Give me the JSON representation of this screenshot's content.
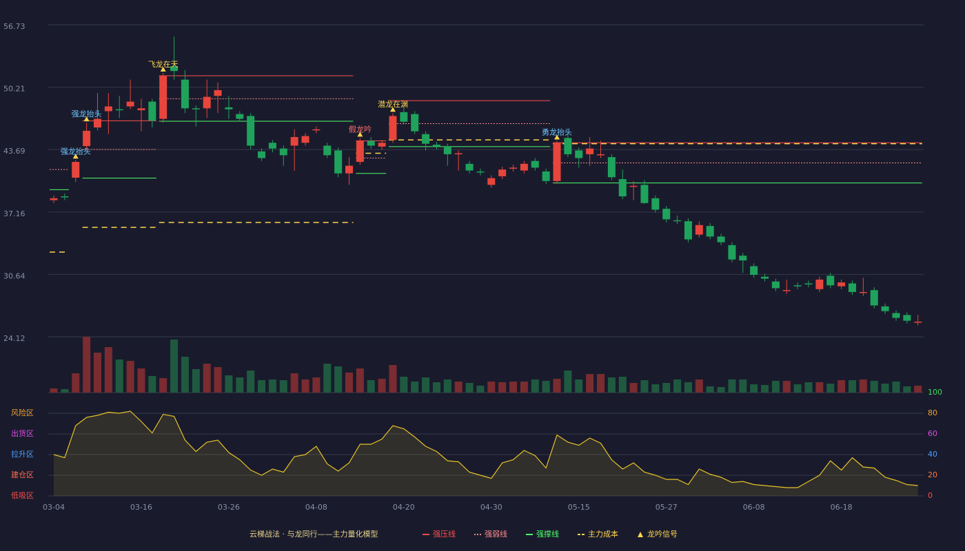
{
  "chart_data": {
    "type": "candlestick",
    "categories": [
      "03-04",
      null,
      null,
      null,
      null,
      null,
      null,
      null,
      "03-16",
      null,
      null,
      null,
      null,
      null,
      null,
      null,
      "03-26",
      null,
      null,
      null,
      null,
      null,
      null,
      null,
      "04-08",
      null,
      null,
      null,
      null,
      null,
      null,
      null,
      "04-20",
      null,
      null,
      null,
      null,
      null,
      null,
      null,
      "04-30",
      null,
      null,
      null,
      null,
      null,
      null,
      null,
      "05-15",
      null,
      null,
      null,
      null,
      null,
      null,
      null,
      "05-27",
      null,
      null,
      null,
      null,
      null,
      null,
      null,
      "06-08",
      null,
      null,
      null,
      null,
      null,
      null,
      null,
      "06-18",
      null,
      null,
      null,
      null,
      null,
      null,
      null
    ],
    "open": [
      38.4,
      38.8,
      40.75,
      44.05,
      46.0,
      47.7,
      47.9,
      48.2,
      47.8,
      48.7,
      46.9,
      52.4,
      51.0,
      48.0,
      48.0,
      49.3,
      48.1,
      47.4,
      47.2,
      43.5,
      44.4,
      43.8,
      44.1,
      44.4,
      45.7,
      44.1,
      43.6,
      41.2,
      42.4,
      44.6,
      44.0,
      44.7,
      47.6,
      47.4,
      45.3,
      44.2,
      44.0,
      43.2,
      42.2,
      41.4,
      40.0,
      40.9,
      41.7,
      41.5,
      42.5,
      41.4,
      40.4,
      44.9,
      43.6,
      43.2,
      43.1,
      42.9,
      40.6,
      39.8,
      40.0,
      38.6,
      37.5,
      36.3,
      36.2,
      34.8,
      35.7,
      34.6,
      33.7,
      32.6,
      31.5,
      30.4,
      29.9,
      28.9,
      29.5,
      29.7,
      29.1,
      30.5,
      29.4,
      29.7,
      28.7,
      29.0,
      27.3,
      26.6,
      26.4,
      25.6
    ],
    "high": [
      38.9,
      39.1,
      42.6,
      46.5,
      49.6,
      49.6,
      49.3,
      51.0,
      49.0,
      49.0,
      51.7,
      55.5,
      52.0,
      48.3,
      51.0,
      50.7,
      49.3,
      47.7,
      47.5,
      43.8,
      44.7,
      44.1,
      45.8,
      45.4,
      46.1,
      44.4,
      43.9,
      42.9,
      44.9,
      45.0,
      44.7,
      47.5,
      48.2,
      47.7,
      45.6,
      44.5,
      44.3,
      43.6,
      42.5,
      41.7,
      41.0,
      41.9,
      42.1,
      42.5,
      42.8,
      41.7,
      44.6,
      45.4,
      43.9,
      45.0,
      44.6,
      43.2,
      41.6,
      40.4,
      40.5,
      38.9,
      37.8,
      36.8,
      36.5,
      36.2,
      36.0,
      34.9,
      34.0,
      32.9,
      31.8,
      30.7,
      30.2,
      30.1,
      29.8,
      30.0,
      30.4,
      30.8,
      30.1,
      30.0,
      30.3,
      29.3,
      27.6,
      26.9,
      26.7,
      26.4
    ],
    "low": [
      38.1,
      38.4,
      40.3,
      43.75,
      45.7,
      45.3,
      47.0,
      47.9,
      45.6,
      46.0,
      46.5,
      51.0,
      47.5,
      46.1,
      47.0,
      47.5,
      46.9,
      46.6,
      43.7,
      42.5,
      43.4,
      42.0,
      41.5,
      44.1,
      45.4,
      42.8,
      40.8,
      40.0,
      42.1,
      43.8,
      43.7,
      44.4,
      46.3,
      45.3,
      43.6,
      43.7,
      42.0,
      41.5,
      41.2,
      41.0,
      39.7,
      40.6,
      41.4,
      41.2,
      41.5,
      40.1,
      40.1,
      42.9,
      41.8,
      42.0,
      42.8,
      40.5,
      38.5,
      38.4,
      38.0,
      37.1,
      36.1,
      35.9,
      34.0,
      34.5,
      34.3,
      33.7,
      31.9,
      30.8,
      30.3,
      29.9,
      28.9,
      28.6,
      29.1,
      29.3,
      28.8,
      29.2,
      29.1,
      28.5,
      28.4,
      27.1,
      26.5,
      25.8,
      25.5,
      25.3
    ],
    "close": [
      38.6,
      38.7,
      42.4,
      45.65,
      46.9,
      48.2,
      47.8,
      48.7,
      48.0,
      46.7,
      51.4,
      51.9,
      48.0,
      47.9,
      49.2,
      49.9,
      47.9,
      46.9,
      44.1,
      42.8,
      43.8,
      43.1,
      45.0,
      45.1,
      45.8,
      43.1,
      41.2,
      42.0,
      44.6,
      44.1,
      44.4,
      47.2,
      46.6,
      45.6,
      44.3,
      44.0,
      43.2,
      43.3,
      41.5,
      41.3,
      40.7,
      41.6,
      41.8,
      42.2,
      41.8,
      40.4,
      44.4,
      43.2,
      42.8,
      43.8,
      43.2,
      40.8,
      38.8,
      39.9,
      38.1,
      37.4,
      36.4,
      36.2,
      34.3,
      35.8,
      34.6,
      34.0,
      32.2,
      32.1,
      30.6,
      30.2,
      29.2,
      29.0,
      29.4,
      29.6,
      30.1,
      29.5,
      29.8,
      28.8,
      28.8,
      27.4,
      26.8,
      26.1,
      25.8,
      25.7
    ],
    "volume": [
      6,
      5,
      28,
      81,
      58,
      66,
      48,
      46,
      35,
      24,
      21,
      77,
      52,
      34,
      42,
      37,
      25,
      22,
      32,
      18,
      19,
      18,
      28,
      19,
      22,
      42,
      38,
      29,
      35,
      18,
      20,
      40,
      23,
      16,
      22,
      15,
      19,
      16,
      14,
      10,
      16,
      15,
      16,
      16,
      19,
      17,
      20,
      32,
      19,
      27,
      27,
      22,
      23,
      14,
      18,
      12,
      14,
      19,
      15,
      19,
      9,
      8,
      19,
      19,
      12,
      11,
      17,
      17,
      12,
      15,
      15,
      13,
      18,
      18,
      19,
      17,
      13,
      16,
      9,
      10
    ],
    "up_color": "#e8453c",
    "down_color": "#1fa35c",
    "volume_up_color": "#7a2c30",
    "volume_down_color": "#1f5a40",
    "ylim": [
      24.12,
      56.73
    ],
    "yticks": [
      24.12,
      30.64,
      37.16,
      43.69,
      50.21,
      56.73
    ],
    "grid": true,
    "levels": [
      {
        "start": 0,
        "end": 1,
        "weak": 41.6,
        "support": 39.5,
        "cost": 32.97
      },
      {
        "start": 3,
        "end": 9,
        "resistance": 46.7,
        "weak": 43.7,
        "support": 40.7,
        "cost": 35.56
      },
      {
        "start": 10,
        "end": 27,
        "resistance": 51.4,
        "weak": 49.0,
        "support": 46.65,
        "cost": 36.07
      },
      {
        "start": 28,
        "end": 30,
        "resistance": 44.6,
        "weak": 42.8,
        "support": 41.2,
        "cost": 43.3
      },
      {
        "start": 31,
        "end": 45,
        "resistance": 48.8,
        "weak": 46.4,
        "support": 44.0,
        "cost": 44.7
      },
      {
        "start": 46,
        "end": 79,
        "resistance": 44.4,
        "weak": 42.3,
        "support": 40.2,
        "cost": 44.3
      }
    ],
    "signals": [
      {
        "index": 2,
        "label": "强龙抬头",
        "color": "#6ec6ff"
      },
      {
        "index": 3,
        "label": "强龙抬头",
        "color": "#6ec6ff"
      },
      {
        "index": 10,
        "label": "飞龙在天",
        "color": "#ffd54f"
      },
      {
        "index": 28,
        "label": "假龙吟",
        "color": "#ff7070"
      },
      {
        "index": 31,
        "label": "潜龙在渊",
        "color": "#ffd54f"
      },
      {
        "index": 46,
        "label": "勇龙抬头",
        "color": "#6ec6ff"
      }
    ],
    "indicator": {
      "color": "#e6c229",
      "values": [
        40,
        37,
        68,
        76,
        78,
        81,
        80,
        82,
        72,
        61,
        79,
        77,
        54,
        43,
        52,
        54,
        42,
        35,
        25,
        20,
        26,
        23,
        38,
        40,
        48,
        31,
        24,
        32,
        50,
        50,
        55,
        68,
        65,
        57,
        48,
        43,
        34,
        33,
        23,
        20,
        17,
        32,
        35,
        44,
        39,
        27,
        59,
        52,
        49,
        56,
        51,
        35,
        26,
        32,
        23,
        20,
        16,
        16,
        11,
        26,
        21,
        18,
        13,
        14,
        11,
        10,
        9,
        8,
        8,
        14,
        20,
        34,
        25,
        37,
        28,
        27,
        18,
        15,
        11,
        10
      ]
    },
    "y2lim": [
      0,
      100
    ],
    "y2ticks": [
      0,
      20,
      40,
      60,
      80,
      100
    ],
    "y2tick_colors": [
      "#ff4d4d",
      "#ff7a3d",
      "#4d9fff",
      "#d94ce0",
      "#f0a030",
      "#3ddc5a"
    ],
    "zones": [
      {
        "label": "风险区",
        "value": 80,
        "color": "#f0a030"
      },
      {
        "label": "出货区",
        "value": 60,
        "color": "#d94ce0"
      },
      {
        "label": "拉升区",
        "value": 40,
        "color": "#4d9fff"
      },
      {
        "label": "建仓区",
        "value": 20,
        "color": "#ff6a4d"
      },
      {
        "label": "低吸区",
        "value": 0,
        "color": "#ff4d4d"
      }
    ],
    "legend_title": "云梯战法 · 与龙同行——主力量化模型",
    "legend": [
      {
        "label": "强压线",
        "color": "#ff4d4d",
        "style": "solid"
      },
      {
        "label": "强弱线",
        "color": "#ff8a8a",
        "style": "dotted"
      },
      {
        "label": "强撑线",
        "color": "#4dff6a",
        "style": "solid"
      },
      {
        "label": "主力成本",
        "color": "#ffd54f",
        "style": "dashed"
      },
      {
        "label": "龙吟信号",
        "color": "#ffd54f",
        "style": "triangle"
      }
    ]
  }
}
